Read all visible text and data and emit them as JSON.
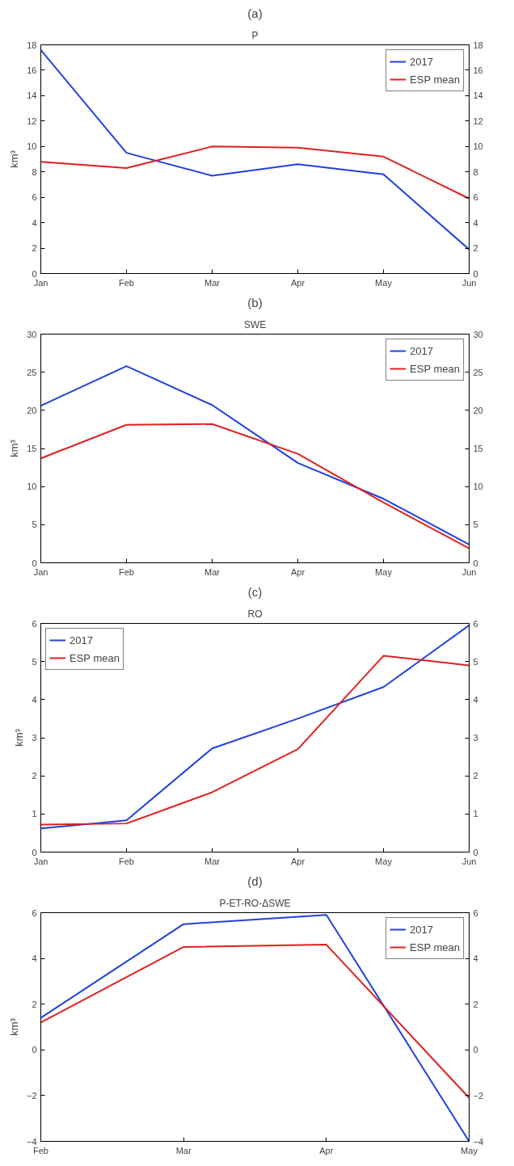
{
  "chart_data": [
    {
      "type": "line",
      "title": "P",
      "annotations": [
        "(a)"
      ],
      "ylabel": "km³",
      "categories": [
        "Jan",
        "Feb",
        "Mar",
        "Apr",
        "May",
        "Jun"
      ],
      "ylim": [
        0,
        18
      ],
      "yticks": [
        0,
        2,
        4,
        6,
        8,
        10,
        12,
        14,
        16,
        18
      ],
      "y2lim": [
        0,
        18
      ],
      "y2ticks": [
        0,
        2,
        4,
        6,
        8,
        10,
        12,
        14,
        16,
        18
      ],
      "grid": false,
      "legend": "top right",
      "series": [
        {
          "name": "2017",
          "color": "#2040e0",
          "values": [
            17.6,
            9.5,
            7.7,
            8.6,
            7.8,
            1.9
          ]
        },
        {
          "name": "ESP mean",
          "color": "#e02020",
          "values": [
            8.8,
            8.3,
            10.0,
            9.9,
            9.2,
            5.9
          ]
        }
      ]
    },
    {
      "type": "line",
      "title": "SWE",
      "annotations": [
        "(b)"
      ],
      "ylabel": "km³",
      "categories": [
        "Jan",
        "Feb",
        "Mar",
        "Apr",
        "May",
        "Jun"
      ],
      "ylim": [
        0,
        30
      ],
      "yticks": [
        0,
        5,
        10,
        15,
        20,
        25,
        30
      ],
      "y2lim": [
        0,
        30
      ],
      "y2ticks": [
        0,
        5,
        10,
        15,
        20,
        25,
        30
      ],
      "grid": false,
      "legend": "top right",
      "series": [
        {
          "name": "2017",
          "color": "#2040e0",
          "values": [
            20.6,
            25.8,
            20.7,
            13.1,
            8.4,
            2.4
          ]
        },
        {
          "name": "ESP mean",
          "color": "#e02020",
          "values": [
            13.7,
            18.1,
            18.2,
            14.3,
            7.9,
            1.9
          ]
        }
      ]
    },
    {
      "type": "line",
      "title": "RO",
      "annotations": [
        "(c)"
      ],
      "ylabel": "km³",
      "categories": [
        "Jan",
        "Feb",
        "Mar",
        "Apr",
        "May",
        "Jun"
      ],
      "ylim": [
        0,
        6
      ],
      "yticks": [
        0,
        1,
        2,
        3,
        4,
        5,
        6
      ],
      "y2lim": [
        0,
        6
      ],
      "y2ticks": [
        0,
        1,
        2,
        3,
        4,
        5,
        6
      ],
      "grid": false,
      "legend": "top left",
      "series": [
        {
          "name": "2017",
          "color": "#2040e0",
          "values": [
            0.62,
            0.83,
            2.72,
            3.5,
            4.33,
            5.95
          ]
        },
        {
          "name": "ESP mean",
          "color": "#e02020",
          "values": [
            0.72,
            0.75,
            1.57,
            2.7,
            5.15,
            4.9
          ]
        }
      ]
    },
    {
      "type": "line",
      "title": "P-ET-RO-ΔSWE",
      "annotations": [
        "(d)"
      ],
      "ylabel": "km³",
      "categories": [
        "Feb",
        "Mar",
        "Apr",
        "May"
      ],
      "ylim": [
        -4,
        6
      ],
      "yticks": [
        -4,
        -2,
        0,
        2,
        4,
        6
      ],
      "y2lim": [
        -4,
        6
      ],
      "y2ticks": [
        -4,
        -2,
        0,
        2,
        4,
        6
      ],
      "grid": false,
      "legend": "top right",
      "series": [
        {
          "name": "2017",
          "color": "#2040e0",
          "values": [
            1.4,
            5.5,
            5.9,
            -4.0
          ]
        },
        {
          "name": "ESP mean",
          "color": "#e02020",
          "values": [
            1.2,
            4.5,
            4.6,
            -2.1
          ]
        }
      ]
    }
  ]
}
